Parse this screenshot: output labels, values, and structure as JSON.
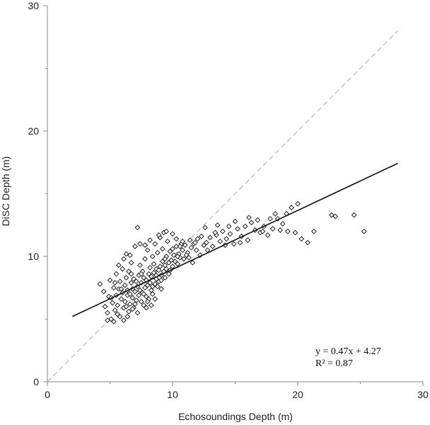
{
  "chart_data": {
    "type": "scatter",
    "xlabel": "Echosoundings Depth (m)",
    "ylabel": "DiSC Depth (m)",
    "xlim": [
      0,
      30
    ],
    "ylim": [
      0,
      30
    ],
    "x_ticks": [
      "0",
      "10",
      "20",
      "30"
    ],
    "y_ticks": [
      "0",
      "10",
      "20",
      "30"
    ],
    "grid": false,
    "marker": "diamond-open",
    "fit_line": {
      "slope": 0.47,
      "intercept": 4.27,
      "x_range": [
        2,
        28
      ]
    },
    "identity_line": {
      "style": "dashed",
      "x_range": [
        0,
        28
      ]
    },
    "annotations": [
      "y = 0.47x + 4.27",
      "R² = 0.87"
    ],
    "points": [
      [
        4.2,
        7.8
      ],
      [
        4.5,
        7.2
      ],
      [
        4.6,
        6.0
      ],
      [
        4.8,
        5.5
      ],
      [
        4.9,
        6.8
      ],
      [
        5.0,
        8.1
      ],
      [
        5.1,
        5.0
      ],
      [
        5.2,
        6.3
      ],
      [
        5.3,
        7.5
      ],
      [
        5.4,
        5.7
      ],
      [
        5.5,
        6.9
      ],
      [
        5.5,
        8.6
      ],
      [
        5.6,
        6.1
      ],
      [
        5.7,
        7.4
      ],
      [
        5.8,
        5.2
      ],
      [
        5.8,
        8.0
      ],
      [
        5.9,
        6.6
      ],
      [
        6.0,
        7.1
      ],
      [
        6.0,
        9.0
      ],
      [
        6.1,
        5.9
      ],
      [
        6.2,
        7.7
      ],
      [
        6.2,
        6.4
      ],
      [
        6.3,
        8.3
      ],
      [
        6.3,
        10.2
      ],
      [
        6.4,
        6.9
      ],
      [
        6.4,
        7.3
      ],
      [
        6.5,
        5.6
      ],
      [
        6.5,
        8.8
      ],
      [
        6.6,
        7.0
      ],
      [
        6.6,
        6.2
      ],
      [
        6.7,
        7.9
      ],
      [
        6.7,
        9.5
      ],
      [
        6.8,
        6.7
      ],
      [
        6.8,
        7.4
      ],
      [
        6.9,
        8.2
      ],
      [
        6.9,
        5.9
      ],
      [
        7.0,
        7.2
      ],
      [
        7.0,
        10.8
      ],
      [
        7.1,
        6.5
      ],
      [
        7.1,
        8.0
      ],
      [
        7.2,
        7.6
      ],
      [
        7.2,
        12.3
      ],
      [
        7.3,
        6.9
      ],
      [
        7.3,
        8.5
      ],
      [
        7.4,
        7.3
      ],
      [
        7.4,
        9.3
      ],
      [
        7.5,
        6.4
      ],
      [
        7.5,
        7.9
      ],
      [
        7.6,
        8.8
      ],
      [
        7.6,
        7.1
      ],
      [
        7.7,
        6.1
      ],
      [
        7.7,
        8.3
      ],
      [
        7.8,
        7.5
      ],
      [
        7.8,
        9.8
      ],
      [
        7.9,
        6.8
      ],
      [
        7.9,
        8.1
      ],
      [
        8.0,
        7.7
      ],
      [
        8.0,
        10.5
      ],
      [
        8.1,
        8.6
      ],
      [
        8.1,
        6.6
      ],
      [
        8.2,
        7.9
      ],
      [
        8.2,
        9.1
      ],
      [
        8.3,
        7.3
      ],
      [
        8.3,
        8.4
      ],
      [
        8.4,
        10.0
      ],
      [
        8.4,
        7.0
      ],
      [
        8.5,
        8.7
      ],
      [
        8.5,
        9.4
      ],
      [
        8.6,
        7.8
      ],
      [
        8.6,
        11.0
      ],
      [
        8.7,
        8.2
      ],
      [
        8.7,
        9.0
      ],
      [
        8.8,
        7.6
      ],
      [
        8.8,
        10.3
      ],
      [
        8.9,
        8.9
      ],
      [
        8.9,
        8.0
      ],
      [
        9.0,
        9.2
      ],
      [
        9.0,
        11.5
      ],
      [
        9.1,
        8.5
      ],
      [
        9.1,
        7.4
      ],
      [
        9.2,
        9.6
      ],
      [
        9.2,
        10.6
      ],
      [
        9.3,
        8.8
      ],
      [
        9.3,
        11.9
      ],
      [
        9.4,
        9.3
      ],
      [
        9.4,
        8.3
      ],
      [
        9.5,
        10.0
      ],
      [
        9.5,
        9.0
      ],
      [
        9.6,
        11.2
      ],
      [
        9.7,
        9.5
      ],
      [
        9.8,
        8.9
      ],
      [
        9.8,
        10.4
      ],
      [
        9.9,
        9.7
      ],
      [
        10.0,
        11.8
      ],
      [
        10.0,
        9.2
      ],
      [
        10.1,
        10.1
      ],
      [
        10.2,
        9.6
      ],
      [
        10.3,
        10.8
      ],
      [
        10.4,
        9.4
      ],
      [
        10.5,
        10.2
      ],
      [
        10.6,
        9.9
      ],
      [
        10.7,
        11.0
      ],
      [
        10.8,
        10.5
      ],
      [
        10.9,
        9.8
      ],
      [
        11.0,
        10.9
      ],
      [
        11.2,
        10.3
      ],
      [
        11.4,
        11.3
      ],
      [
        11.5,
        10.7
      ],
      [
        11.7,
        11.0
      ],
      [
        11.9,
        10.5
      ],
      [
        12.0,
        11.4
      ],
      [
        12.3,
        11.6
      ],
      [
        12.5,
        10.9
      ],
      [
        12.7,
        11.1
      ],
      [
        13.0,
        11.5
      ],
      [
        13.2,
        10.8
      ],
      [
        13.5,
        11.7
      ],
      [
        13.8,
        11.2
      ],
      [
        14.0,
        12.0
      ],
      [
        14.3,
        11.4
      ],
      [
        14.6,
        11.8
      ],
      [
        14.9,
        11.0
      ],
      [
        15.2,
        12.2
      ],
      [
        15.5,
        11.6
      ],
      [
        15.8,
        12.4
      ],
      [
        16.0,
        11.3
      ],
      [
        16.3,
        12.7
      ],
      [
        16.6,
        12.1
      ],
      [
        17.0,
        11.9
      ],
      [
        17.3,
        12.4
      ],
      [
        17.6,
        11.7
      ],
      [
        18.0,
        12.2
      ],
      [
        18.4,
        13.0
      ],
      [
        18.8,
        12.6
      ],
      [
        19.2,
        12.0
      ],
      [
        19.5,
        13.9
      ],
      [
        19.8,
        11.9
      ],
      [
        20.0,
        14.2
      ],
      [
        20.3,
        11.4
      ],
      [
        20.8,
        11.1
      ],
      [
        21.3,
        12.0
      ],
      [
        22.7,
        13.3
      ],
      [
        23.0,
        13.2
      ],
      [
        24.5,
        13.3
      ],
      [
        25.3,
        12.0
      ],
      [
        4.8,
        4.9
      ],
      [
        5.3,
        4.8
      ],
      [
        5.6,
        5.4
      ],
      [
        6.1,
        4.9
      ],
      [
        6.4,
        5.2
      ],
      [
        6.8,
        5.8
      ],
      [
        7.2,
        5.5
      ],
      [
        7.9,
        5.9
      ],
      [
        8.3,
        6.1
      ],
      [
        8.6,
        6.6
      ],
      [
        5.7,
        9.3
      ],
      [
        6.1,
        9.8
      ],
      [
        6.6,
        10.1
      ],
      [
        7.4,
        11.0
      ],
      [
        7.8,
        10.9
      ],
      [
        8.2,
        11.3
      ],
      [
        8.9,
        11.7
      ],
      [
        9.5,
        12.0
      ],
      [
        10.3,
        11.4
      ],
      [
        10.6,
        10.8
      ],
      [
        11.3,
        9.9
      ],
      [
        11.6,
        9.5
      ],
      [
        12.2,
        10.1
      ],
      [
        12.8,
        10.5
      ],
      [
        13.4,
        11.9
      ],
      [
        14.5,
        12.4
      ],
      [
        15.4,
        11.1
      ],
      [
        16.8,
        12.9
      ],
      [
        17.8,
        13.0
      ],
      [
        18.6,
        12.1
      ],
      [
        19.1,
        13.4
      ],
      [
        5.1,
        6.7
      ],
      [
        5.4,
        7.9
      ],
      [
        5.9,
        7.4
      ],
      [
        6.3,
        6.0
      ],
      [
        6.7,
        8.6
      ],
      [
        7.0,
        6.2
      ],
      [
        7.5,
        8.6
      ],
      [
        7.7,
        7.0
      ],
      [
        8.0,
        6.4
      ],
      [
        8.4,
        7.6
      ],
      [
        8.7,
        8.5
      ],
      [
        9.1,
        8.1
      ],
      [
        9.4,
        9.8
      ],
      [
        9.7,
        8.6
      ],
      [
        10.0,
        10.6
      ],
      [
        10.4,
        10.0
      ],
      [
        10.8,
        11.2
      ],
      [
        11.1,
        10.1
      ],
      [
        11.8,
        11.1
      ],
      [
        12.6,
        12.3
      ],
      [
        13.6,
        12.5
      ],
      [
        14.2,
        10.9
      ],
      [
        15.0,
        12.8
      ],
      [
        16.1,
        13.1
      ],
      [
        17.2,
        12.0
      ],
      [
        18.2,
        13.4
      ]
    ]
  }
}
